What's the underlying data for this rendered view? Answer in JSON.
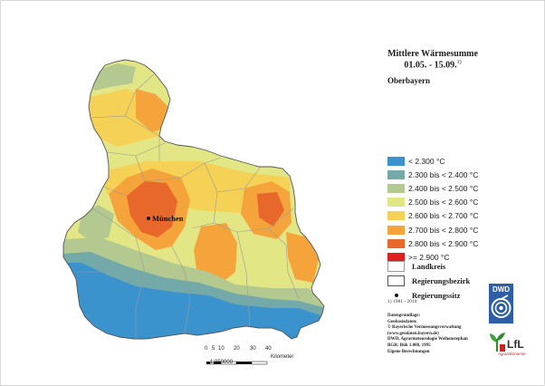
{
  "header": {
    "title_line1": "Mittlere Wärmesumme",
    "title_line2": "01.05. - 15.09.",
    "title_sup": "1)",
    "region": "Oberbayern"
  },
  "legend": {
    "classes": [
      {
        "label": "< 2.300 °C",
        "color": "#3a93cc"
      },
      {
        "label": "2.300 bis < 2.400 °C",
        "color": "#74a9a9"
      },
      {
        "label": "2.400 bis < 2.500 °C",
        "color": "#b3c990"
      },
      {
        "label": "2.500 bis < 2.600 °C",
        "color": "#e3e684"
      },
      {
        "label": "2.600 bis < 2.700 °C",
        "color": "#f5d256"
      },
      {
        "label": "2.700 bis < 2.800 °C",
        "color": "#f5a33b"
      },
      {
        "label": "2.800 bis < 2.900 °C",
        "color": "#e8672a"
      },
      {
        "label": ">= 2.900 °C",
        "color": "#e0201e"
      }
    ]
  },
  "boundaries": {
    "landkreis": "Landkreis",
    "regierungsbezirk": "Regierungsbezirk",
    "regierungssitz": "Regierungssitz"
  },
  "footnote": "1) 1981 - 2010",
  "sources": {
    "heading": "Datengrundlage:",
    "lines": [
      "Geobasisdaten:",
      "© Bayerische Vermessungsverwaltung",
      "(www.geodaten.bayern.de)",
      "DWD, Agrarmeteorologie Weihenstephan",
      "BGR: Bük 1.000, 1995",
      "Eigene Berechnungen"
    ]
  },
  "map": {
    "city_label": "München"
  },
  "scale": {
    "ticks": [
      "0",
      "5",
      "10",
      "20",
      "30",
      "40"
    ],
    "unit": "Kilometer",
    "ratio": "1:850000"
  },
  "logos": {
    "dwd": "DWD",
    "lfl": "LfL",
    "lfl_sub": "Agrarökonomie"
  }
}
